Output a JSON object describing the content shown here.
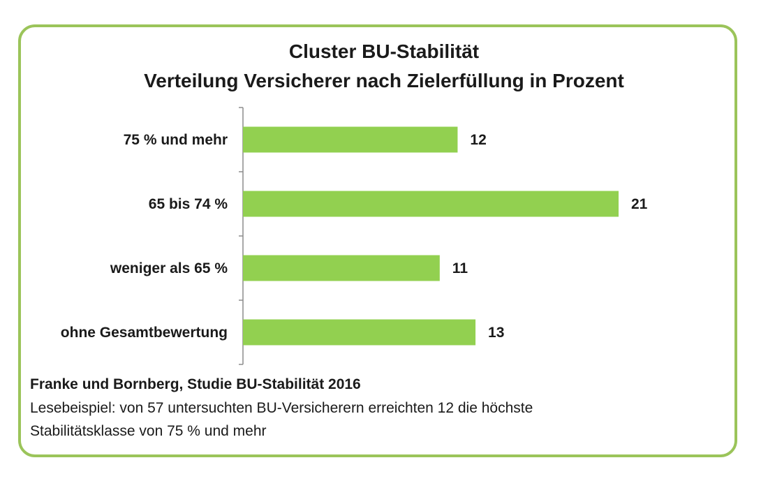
{
  "chart_data": {
    "type": "bar",
    "orientation": "horizontal",
    "title_line1": "Cluster BU-Stabilität",
    "title_line2": "Verteilung Versicherer nach Zielerfüllung in Prozent",
    "categories": [
      "75 % und mehr",
      "65 bis 74 %",
      "weniger als 65 %",
      "ohne Gesamtbewertung"
    ],
    "values": [
      12,
      21,
      11,
      13
    ],
    "value_labels": [
      "12",
      "21",
      "11",
      "13"
    ],
    "xlim": [
      0,
      21
    ],
    "grid": false,
    "legend": "none",
    "bar_color": "#92d050"
  },
  "footer": {
    "source": "Franke und Bornberg, Studie BU-Stabilität 2016",
    "note_line1": "Lesebeispiel: von 57 untersuchten BU-Versicherern erreichten 12 die höchste",
    "note_line2": "Stabilitätsklasse von 75 % und mehr"
  },
  "colors": {
    "frame_border": "#9bc45a",
    "bar": "#92d050",
    "axis": "#8c8c8c",
    "text": "#1a1a1a"
  }
}
